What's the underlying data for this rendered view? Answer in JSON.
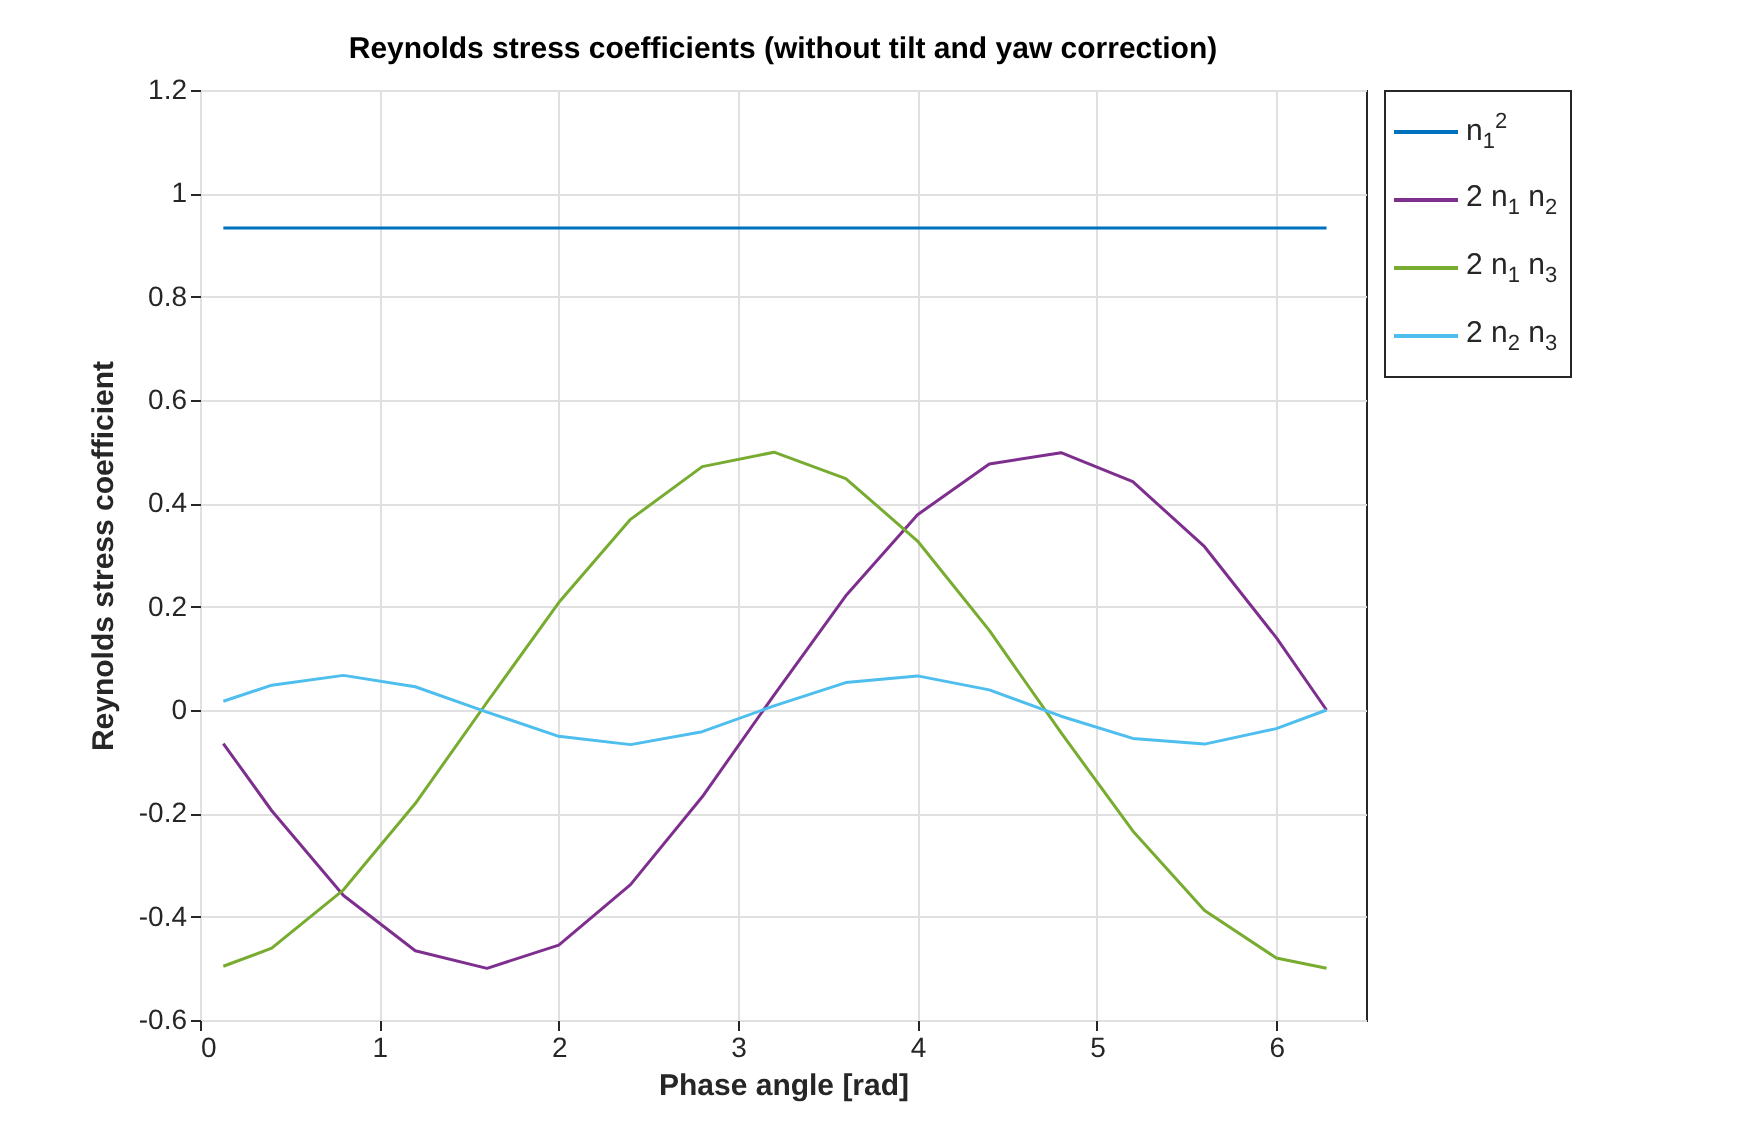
{
  "chart_data": {
    "type": "line",
    "title": "Reynolds stress coefficients (without tilt and yaw correction)",
    "xlabel": "Phase angle [rad]",
    "ylabel": "Reynolds stress coefficient",
    "x": [
      0.13,
      0.4,
      0.8,
      1.2,
      1.6,
      2.0,
      2.4,
      2.8,
      3.2,
      3.6,
      4.0,
      4.4,
      4.8,
      5.2,
      5.6,
      6.0,
      6.28
    ],
    "series": [
      {
        "name": "n$_{1}$$^{2}$",
        "color": "#0072bd",
        "values": [
          0.933,
          0.933,
          0.933,
          0.933,
          0.933,
          0.933,
          0.933,
          0.933,
          0.933,
          0.933,
          0.933,
          0.933,
          0.933,
          0.933,
          0.933,
          0.933,
          0.933
        ]
      },
      {
        "name": "2 n$_{1}$ n$_{2}$",
        "color": "#7e2f8e",
        "values": [
          -0.065,
          -0.195,
          -0.359,
          -0.466,
          -0.5,
          -0.455,
          -0.338,
          -0.168,
          0.029,
          0.221,
          0.378,
          0.476,
          0.498,
          0.442,
          0.316,
          0.14,
          0.0
        ]
      },
      {
        "name": "2 n$_{1}$ n$_{3}$",
        "color": "#77ac30",
        "values": [
          -0.496,
          -0.461,
          -0.348,
          -0.181,
          0.015,
          0.208,
          0.369,
          0.471,
          0.499,
          0.448,
          0.327,
          0.154,
          -0.044,
          -0.234,
          -0.388,
          -0.48,
          -0.5
        ]
      },
      {
        "name": "2 n$_{2}$ n$_{3}$",
        "color": "#4dbeee",
        "values": [
          0.017,
          0.048,
          0.067,
          0.045,
          -0.004,
          -0.051,
          -0.067,
          -0.042,
          0.008,
          0.053,
          0.066,
          0.039,
          -0.012,
          -0.055,
          -0.066,
          -0.036,
          0.0
        ]
      }
    ],
    "xlim": [
      0,
      6.5
    ],
    "xticks": [
      0,
      1,
      2,
      3,
      4,
      5,
      6
    ],
    "ylim": [
      -0.6,
      1.2
    ],
    "yticks": [
      -0.6,
      -0.4,
      -0.2,
      0,
      0.2,
      0.4,
      0.6,
      0.8,
      1,
      1.2
    ],
    "grid": true,
    "legend": "right",
    "marker": "none",
    "line_style": "solid"
  }
}
